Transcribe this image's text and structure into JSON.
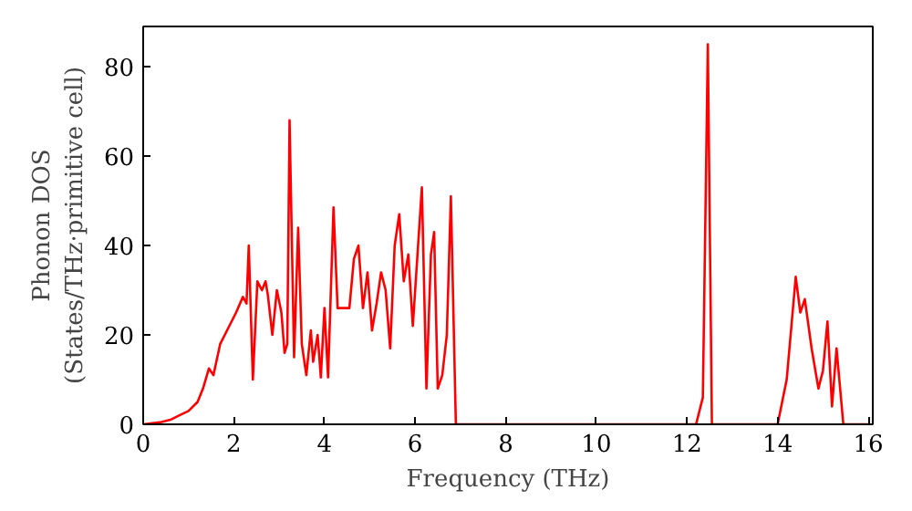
{
  "chart_data": {
    "type": "line",
    "xlabel": "Frequency (THz)",
    "ylabel": "Phonon DOS\n(States/THz·primitive cell)",
    "xlim": [
      0,
      16.1
    ],
    "ylim": [
      0,
      89
    ],
    "xticks": [
      0,
      2,
      4,
      6,
      8,
      10,
      12,
      14,
      16
    ],
    "yticks": [
      0,
      20,
      40,
      60,
      80
    ],
    "grid": false,
    "line_style": "solid",
    "series": [
      {
        "color": "#ff0000",
        "x": [
          0,
          0.4,
          0.6,
          0.8,
          1.0,
          1.2,
          1.32,
          1.45,
          1.55,
          1.7,
          1.9,
          2.05,
          2.2,
          2.28,
          2.33,
          2.42,
          2.52,
          2.62,
          2.7,
          2.75,
          2.85,
          2.95,
          3.05,
          3.12,
          3.18,
          3.23,
          3.33,
          3.42,
          3.5,
          3.6,
          3.7,
          3.75,
          3.85,
          3.92,
          4.0,
          4.08,
          4.2,
          4.29,
          4.4,
          4.55,
          4.65,
          4.75,
          4.85,
          4.95,
          5.05,
          5.15,
          5.25,
          5.35,
          5.45,
          5.55,
          5.65,
          5.75,
          5.85,
          5.95,
          6.15,
          6.25,
          6.35,
          6.42,
          6.5,
          6.6,
          6.7,
          6.79,
          6.9,
          12.2,
          12.35,
          12.46,
          12.55,
          14.0,
          14.2,
          14.4,
          14.5,
          14.6,
          14.75,
          14.9,
          15.0,
          15.1,
          15.2,
          15.3,
          15.45,
          16.0
        ],
        "values": [
          0,
          0.5,
          1,
          2,
          3,
          5,
          8,
          12.5,
          11,
          18,
          22,
          25,
          28.5,
          27,
          40,
          10,
          32,
          30,
          32,
          29,
          20,
          30,
          25,
          16,
          18,
          68,
          15,
          44,
          18,
          11,
          21,
          14,
          20,
          10.5,
          26,
          10.5,
          48.5,
          26,
          26,
          26,
          37,
          40,
          26,
          34,
          21,
          27,
          34,
          30,
          17,
          40,
          47,
          32,
          38,
          22,
          53,
          8,
          38,
          43,
          8,
          11,
          20,
          51,
          0,
          0,
          6,
          85,
          0,
          0,
          10,
          33,
          25,
          28,
          17,
          8,
          12,
          23,
          4,
          17,
          0,
          0
        ]
      }
    ]
  }
}
